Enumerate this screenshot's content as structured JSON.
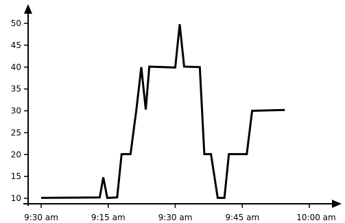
{
  "chart_data": {
    "type": "line",
    "title": "",
    "xlabel": "",
    "ylabel": "",
    "x_ticks": [
      "9:30 am",
      "9:15 am",
      "9:30 am",
      "9:45 am",
      "10:00 am"
    ],
    "y_ticks": [
      10,
      15,
      20,
      25,
      30,
      35,
      40,
      45,
      50
    ],
    "ylim": [
      8,
      55
    ],
    "xlim": [
      0,
      60
    ],
    "grid": false,
    "legend": "none",
    "series": [
      {
        "color": "#000000",
        "x": [
          0.0,
          13.1,
          13.9,
          14.8,
          17.0,
          18.0,
          20.0,
          21.3,
          22.4,
          23.4,
          24.2,
          30.0,
          31.0,
          32.0,
          35.5,
          36.5,
          38.0,
          39.5,
          41.0,
          42.0,
          46.0,
          47.2
        ],
        "y": [
          10.1,
          10.2,
          14.8,
          10.1,
          10.2,
          20.1,
          20.1,
          30.2,
          40.0,
          30.3,
          40.1,
          39.9,
          49.8,
          40.1,
          40.0,
          20.1,
          20.1,
          10.1,
          10.1,
          20.1,
          20.1,
          30.0
        ],
        "x_end": [
          47.2,
          54.5
        ],
        "y_end": [
          30.0,
          30.2
        ]
      }
    ]
  }
}
